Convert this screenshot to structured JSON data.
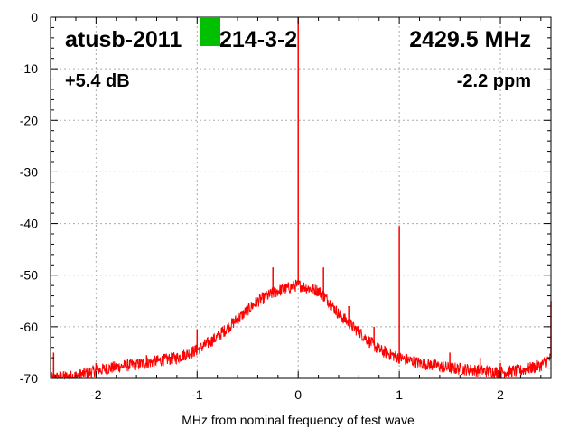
{
  "chart_data": {
    "type": "line",
    "title": "",
    "xlabel": "MHz from nominal frequency of test wave",
    "ylabel": "",
    "xlim": [
      -2.45,
      2.5
    ],
    "ylim": [
      -70,
      0
    ],
    "x_ticks": [
      -2,
      -1,
      0,
      1,
      2
    ],
    "y_ticks": [
      0,
      -10,
      -20,
      -30,
      -40,
      -50,
      -60,
      -70
    ],
    "grid": true,
    "legend": "none",
    "series": [
      {
        "color": "#ff0000",
        "x": [
          -2.45,
          -2.2,
          -2.0,
          -1.8,
          -1.5,
          -1.2,
          -1.0,
          -0.8,
          -0.6,
          -0.4,
          -0.3,
          -0.2,
          -0.1,
          -0.02,
          0.0,
          0.02,
          0.1,
          0.2,
          0.3,
          0.4,
          0.6,
          0.8,
          1.0,
          1.2,
          1.5,
          1.8,
          2.0,
          2.2,
          2.4,
          2.5
        ],
        "y": [
          -70,
          -69.5,
          -68.5,
          -67.8,
          -67,
          -66,
          -64.5,
          -62,
          -58.5,
          -55,
          -54,
          -53,
          -52.5,
          -52,
          0,
          -52,
          -52.5,
          -53,
          -55,
          -57.5,
          -61,
          -64.5,
          -66,
          -67,
          -68,
          -68.5,
          -68.8,
          -68.5,
          -67.5,
          -66
        ]
      }
    ],
    "spikes": [
      {
        "x": -2.42,
        "y": -65
      },
      {
        "x": -2.0,
        "y": -67
      },
      {
        "x": -1.5,
        "y": -65.5
      },
      {
        "x": -1.0,
        "y": -60.5
      },
      {
        "x": -0.75,
        "y": -60
      },
      {
        "x": -0.5,
        "y": -57
      },
      {
        "x": -0.25,
        "y": -48.5
      },
      {
        "x": 0.0,
        "y": 0
      },
      {
        "x": 0.25,
        "y": -48.5
      },
      {
        "x": 0.5,
        "y": -56
      },
      {
        "x": 0.75,
        "y": -60
      },
      {
        "x": 1.0,
        "y": -40.5
      },
      {
        "x": 1.5,
        "y": -65
      },
      {
        "x": 1.8,
        "y": -66
      },
      {
        "x": 2.0,
        "y": -67
      },
      {
        "x": 2.5,
        "y": -55
      }
    ],
    "annotations": {
      "device": "atusb-2011",
      "device_suffix": "214-3-2",
      "frequency": "2429.5 MHz",
      "power": "+5.4 dB",
      "ppm": "-2.2 ppm"
    },
    "marker_color": "#00c000"
  }
}
